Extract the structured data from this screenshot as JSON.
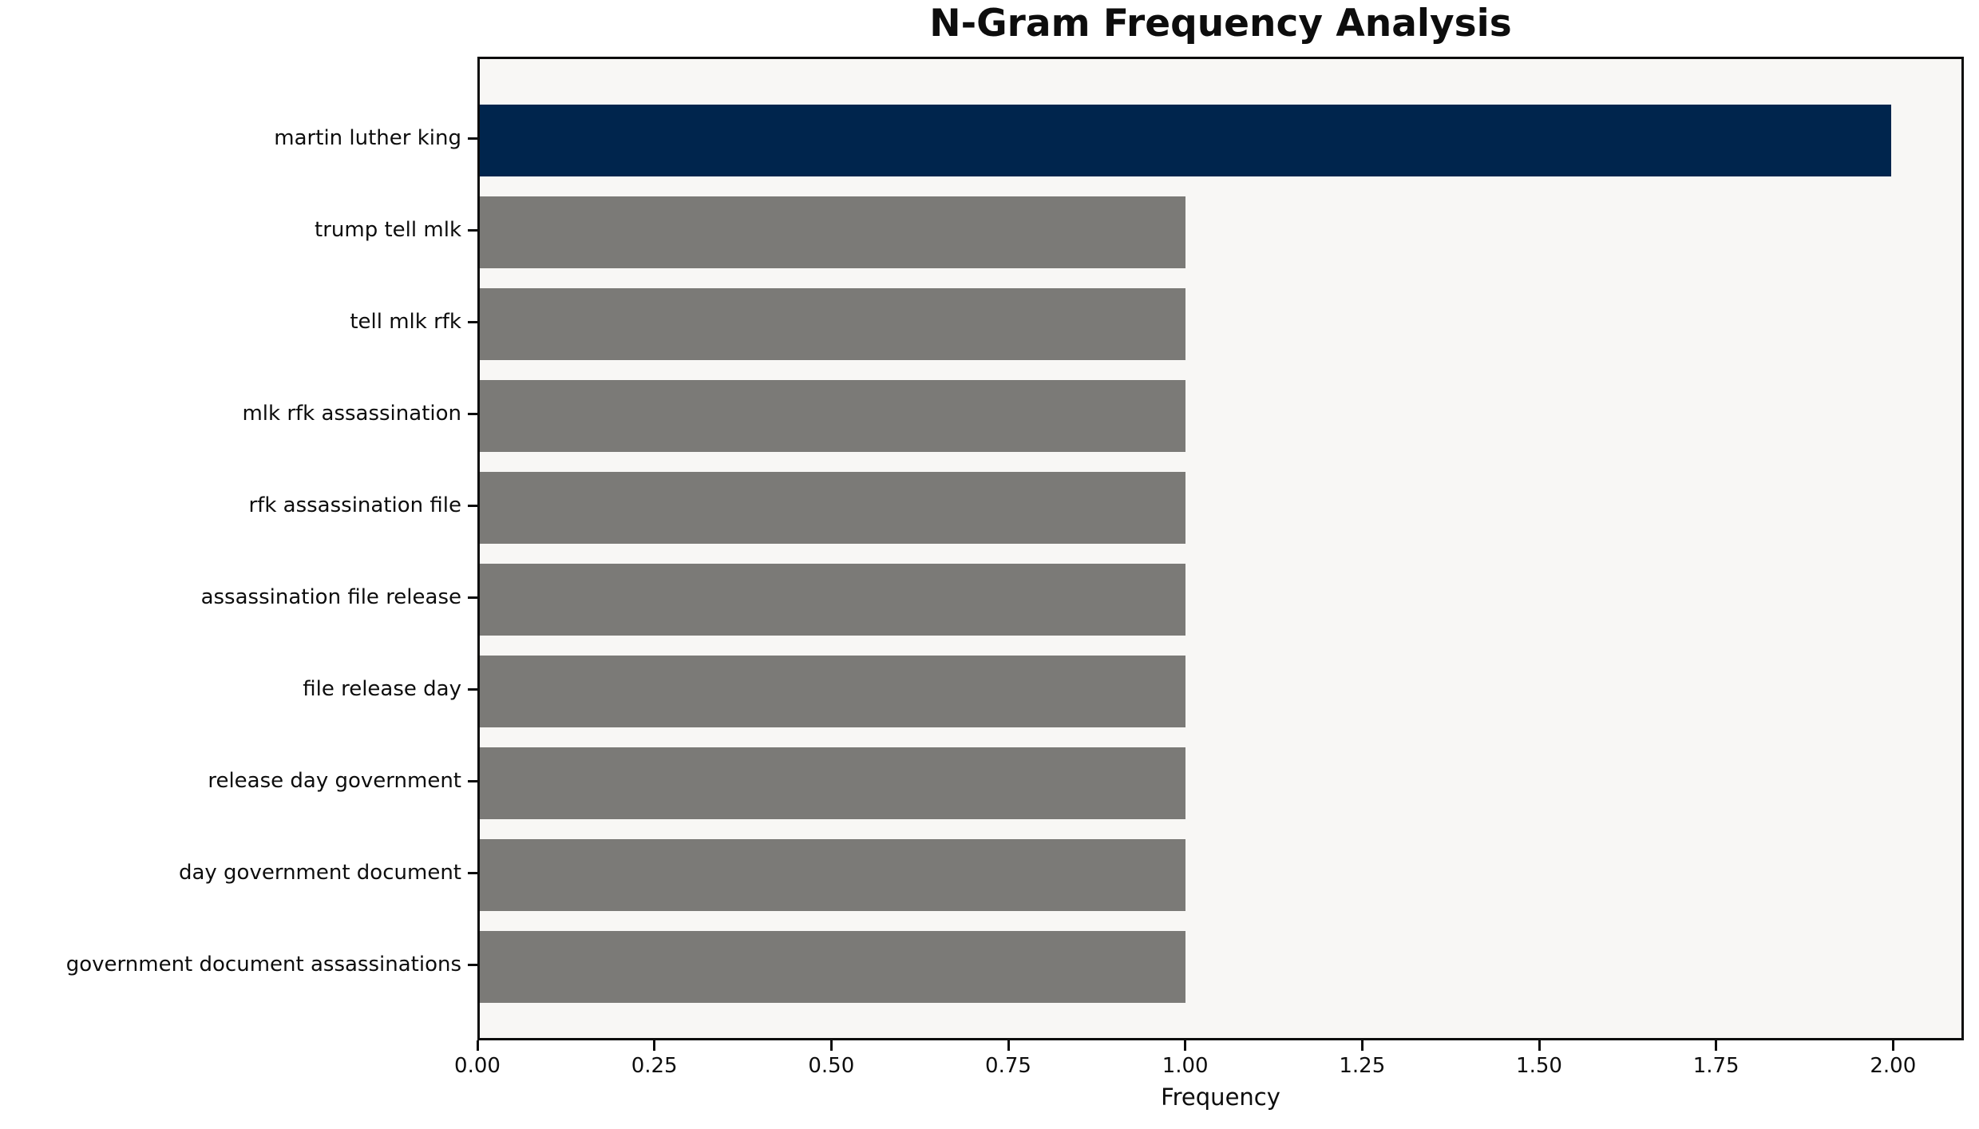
{
  "chart_data": {
    "type": "bar",
    "orientation": "horizontal",
    "title": "N-Gram Frequency Analysis",
    "xlabel": "Frequency",
    "ylabel": "",
    "categories": [
      "martin luther king",
      "trump tell mlk",
      "tell mlk rfk",
      "mlk rfk assassination",
      "rfk assassination file",
      "assassination file release",
      "file release day",
      "release day government",
      "day government document",
      "government document assassinations"
    ],
    "values": [
      2,
      1,
      1,
      1,
      1,
      1,
      1,
      1,
      1,
      1
    ],
    "xlim": [
      0,
      2.1
    ],
    "xticks": [
      0,
      0.25,
      0.5,
      0.75,
      1.0,
      1.25,
      1.5,
      1.75,
      2.0
    ],
    "xtick_labels": [
      "0.00",
      "0.25",
      "0.50",
      "0.75",
      "1.00",
      "1.25",
      "1.50",
      "1.75",
      "2.00"
    ],
    "highlight_index": 0,
    "grid": false,
    "legend_position": "none",
    "colors": {
      "highlight_bar": "#00254d",
      "other_bars": "#7b7a77",
      "plot_background": "#f8f7f5",
      "figure_background": "#ffffff",
      "spine": "#0d0d0d",
      "text": "#0d0d0d"
    }
  }
}
